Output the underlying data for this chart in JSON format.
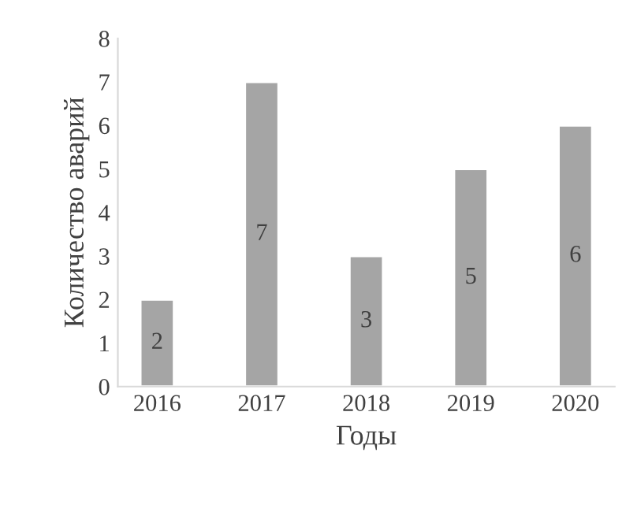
{
  "chart_data": {
    "type": "bar",
    "xlabel": "Годы",
    "ylabel": "Количество аварий",
    "categories": [
      "2016",
      "2017",
      "2018",
      "2019",
      "2020"
    ],
    "values": [
      2,
      7,
      3,
      5,
      6
    ],
    "color": "#a5a5a5",
    "ylim": [
      0,
      8
    ],
    "yticks": [
      0,
      1,
      2,
      3,
      4,
      5,
      6,
      7,
      8
    ],
    "grid": false,
    "data_labels": true
  }
}
